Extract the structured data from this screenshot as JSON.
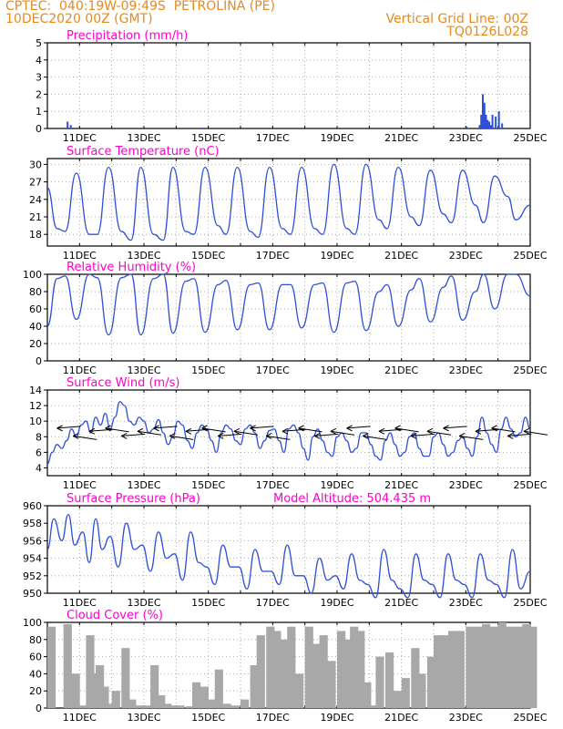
{
  "header": {
    "line1": "CPTEC:  040:19W-09:49S  PETROLINA (PE)",
    "line2": "10DEC2020 00Z (GMT)",
    "grid_note": "Vertical Grid Line: 00Z",
    "code": "TQ0126L028"
  },
  "colors": {
    "header": "#e8891c",
    "title": "#ff00cc",
    "line": "#2e4fd8",
    "bar": "#2e4fd8",
    "cloud": "#a8a8a8",
    "arrow": "#000000"
  },
  "chart_data": [
    {
      "id": "precip",
      "type": "bar",
      "title": "Precipitation (mm/h)",
      "ylim": [
        0,
        5
      ],
      "yticks": [
        0,
        1,
        2,
        3,
        4,
        5
      ],
      "xticks": [
        "11DEC",
        "13DEC",
        "15DEC",
        "17DEC",
        "19DEC",
        "21DEC",
        "23DEC",
        "25DEC"
      ],
      "x": [
        0.6,
        0.7,
        4.8,
        13.0,
        13.4,
        13.45,
        13.5,
        13.55,
        13.6,
        13.65,
        13.7,
        13.75,
        13.8,
        13.9,
        14.0,
        14.1
      ],
      "values": [
        0.4,
        0.2,
        0.05,
        0.1,
        0.2,
        0.8,
        2.0,
        1.5,
        0.8,
        0.5,
        0.4,
        0.2,
        0.8,
        0.7,
        1.0,
        0.3
      ]
    },
    {
      "id": "temp",
      "type": "line",
      "title": "Surface Temperature (nC)",
      "ylim": [
        16,
        31
      ],
      "yticks": [
        18,
        21,
        24,
        27,
        30
      ],
      "xticks": [
        "11DEC",
        "13DEC",
        "15DEC",
        "17DEC",
        "19DEC",
        "21DEC",
        "23DEC",
        "25DEC"
      ],
      "x": [
        0,
        0.3,
        0.55,
        0.9,
        1.3,
        1.55,
        1.9,
        2.3,
        2.6,
        2.9,
        3.3,
        3.6,
        3.9,
        4.3,
        4.55,
        4.9,
        5.3,
        5.55,
        5.9,
        6.3,
        6.55,
        6.9,
        7.3,
        7.55,
        7.9,
        8.3,
        8.55,
        8.9,
        9.3,
        9.55,
        9.9,
        10.3,
        10.55,
        10.9,
        11.3,
        11.55,
        11.9,
        12.3,
        12.55,
        12.9,
        13.3,
        13.55,
        13.9,
        14.3,
        14.55,
        15
      ],
      "values": [
        26,
        19,
        18.5,
        28.5,
        18,
        18,
        29.5,
        18.5,
        17,
        29.5,
        18,
        17,
        29.5,
        18.5,
        18,
        29.5,
        19.5,
        18,
        29.5,
        18.5,
        17.5,
        29.5,
        19,
        18,
        29.5,
        19,
        18,
        30,
        19,
        18,
        30,
        20.5,
        19,
        29.5,
        21,
        19.5,
        29,
        21.5,
        20,
        29,
        23,
        20,
        28,
        24.5,
        20.5,
        23
      ]
    },
    {
      "id": "rh",
      "type": "line",
      "title": "Relative Humidity (%)",
      "ylim": [
        0,
        100
      ],
      "yticks": [
        0,
        20,
        40,
        60,
        80,
        100
      ],
      "xticks": [
        "11DEC",
        "13DEC",
        "15DEC",
        "17DEC",
        "19DEC",
        "21DEC",
        "23DEC",
        "25DEC"
      ],
      "x": [
        0,
        0.3,
        0.55,
        0.9,
        1.3,
        1.55,
        1.9,
        2.3,
        2.6,
        2.9,
        3.3,
        3.6,
        3.9,
        4.3,
        4.55,
        4.9,
        5.3,
        5.55,
        5.9,
        6.3,
        6.55,
        6.9,
        7.3,
        7.55,
        7.9,
        8.3,
        8.55,
        8.9,
        9.3,
        9.55,
        9.9,
        10.3,
        10.55,
        10.9,
        11.3,
        11.55,
        11.9,
        12.3,
        12.55,
        12.9,
        13.3,
        13.55,
        13.9,
        14.3,
        14.55,
        15
      ],
      "values": [
        40,
        95,
        98,
        48,
        100,
        96,
        30,
        96,
        100,
        30,
        95,
        100,
        32,
        92,
        95,
        33,
        88,
        93,
        36,
        88,
        90,
        36,
        88,
        88,
        38,
        88,
        90,
        33,
        90,
        92,
        35,
        80,
        88,
        40,
        82,
        95,
        45,
        85,
        98,
        47,
        80,
        100,
        60,
        100,
        100,
        75
      ]
    },
    {
      "id": "wind",
      "type": "line",
      "title": "Surface Wind (m/s)",
      "ylim": [
        3,
        14
      ],
      "yticks": [
        4,
        6,
        8,
        10,
        12,
        14
      ],
      "xticks": [
        "11DEC",
        "13DEC",
        "15DEC",
        "17DEC",
        "19DEC",
        "21DEC",
        "23DEC",
        "25DEC"
      ],
      "x": [
        0,
        0.15,
        0.3,
        0.45,
        0.6,
        0.75,
        0.9,
        1.05,
        1.2,
        1.35,
        1.5,
        1.65,
        1.8,
        1.95,
        2.1,
        2.25,
        2.4,
        2.55,
        2.7,
        2.85,
        3.0,
        3.15,
        3.3,
        3.45,
        3.6,
        3.75,
        3.9,
        4.05,
        4.2,
        4.35,
        4.5,
        4.65,
        4.8,
        4.95,
        5.1,
        5.25,
        5.4,
        5.55,
        5.7,
        5.85,
        6.0,
        6.15,
        6.3,
        6.45,
        6.6,
        6.75,
        6.9,
        7.05,
        7.2,
        7.35,
        7.5,
        7.65,
        7.8,
        7.95,
        8.1,
        8.25,
        8.4,
        8.55,
        8.7,
        8.85,
        9.0,
        9.15,
        9.3,
        9.45,
        9.6,
        9.75,
        9.9,
        10.05,
        10.2,
        10.35,
        10.5,
        10.65,
        10.8,
        10.95,
        11.1,
        11.25,
        11.4,
        11.55,
        11.7,
        11.85,
        12.0,
        12.15,
        12.3,
        12.45,
        12.6,
        12.75,
        12.9,
        13.05,
        13.2,
        13.35,
        13.5,
        13.65,
        13.8,
        13.95,
        14.1,
        14.25,
        14.4,
        14.55,
        14.7,
        14.85,
        15.0
      ],
      "values": [
        4.5,
        6,
        7,
        6.5,
        7.5,
        9,
        8,
        9.5,
        10,
        8.5,
        10.5,
        9.5,
        11,
        9,
        10.5,
        12.5,
        12,
        10,
        9.5,
        10.5,
        10,
        8.5,
        9,
        10.2,
        8.5,
        7,
        8,
        10,
        9.5,
        7.5,
        6.5,
        8.5,
        9.5,
        9,
        7.5,
        6,
        8.5,
        9.5,
        9,
        7.5,
        7,
        9,
        9.5,
        8.5,
        6.5,
        7.5,
        8.8,
        9,
        7.5,
        6,
        9,
        9.5,
        8.5,
        6.5,
        5,
        8,
        9,
        7.5,
        6,
        5.5,
        8,
        8.5,
        7.5,
        6,
        6.5,
        8.5,
        8.5,
        7,
        5.5,
        5,
        7.5,
        8.5,
        7,
        5.5,
        6,
        8,
        8.5,
        6.5,
        5.5,
        5.5,
        8,
        8.5,
        7,
        5.5,
        6,
        7.5,
        8,
        6.5,
        5.5,
        8,
        10.5,
        8.5,
        7,
        6,
        9,
        10.5,
        9,
        8,
        8.5,
        10.5,
        9
      ]
    },
    {
      "id": "press",
      "type": "line",
      "title": "Surface Pressure (hPa)",
      "annotation": "Model Altitude: 504.435 m",
      "ylim": [
        950,
        960
      ],
      "yticks": [
        950,
        952,
        954,
        956,
        958,
        960
      ],
      "xticks": [
        "11DEC",
        "13DEC",
        "15DEC",
        "17DEC",
        "19DEC",
        "21DEC",
        "23DEC",
        "25DEC"
      ],
      "x": [
        0,
        0.2,
        0.45,
        0.65,
        0.85,
        1.1,
        1.3,
        1.5,
        1.7,
        1.95,
        2.2,
        2.45,
        2.7,
        2.95,
        3.2,
        3.45,
        3.7,
        3.95,
        4.2,
        4.45,
        4.7,
        4.95,
        5.2,
        5.45,
        5.7,
        5.95,
        6.2,
        6.45,
        6.7,
        6.95,
        7.2,
        7.45,
        7.7,
        7.95,
        8.2,
        8.45,
        8.7,
        8.95,
        9.2,
        9.45,
        9.7,
        9.95,
        10.2,
        10.45,
        10.7,
        10.95,
        11.2,
        11.45,
        11.7,
        11.95,
        12.2,
        12.45,
        12.7,
        12.95,
        13.2,
        13.45,
        13.7,
        13.95,
        14.2,
        14.45,
        14.7,
        15
      ],
      "values": [
        955,
        958.5,
        956,
        959,
        955.5,
        957,
        953.5,
        958.5,
        955,
        956.5,
        953,
        958,
        955,
        955.5,
        952.5,
        957,
        954,
        954.5,
        951.5,
        957,
        953.5,
        953,
        951,
        955.5,
        953,
        953,
        950.5,
        955,
        952.5,
        952.5,
        951,
        955.5,
        952,
        952,
        950,
        954,
        951.5,
        952,
        950.5,
        954.5,
        951.5,
        951,
        949.5,
        955,
        951.5,
        950.5,
        949.5,
        954.5,
        951.5,
        951,
        949.5,
        954.5,
        951.5,
        951,
        949.5,
        954.5,
        951.5,
        951,
        949.5,
        955,
        950.5,
        952.5
      ]
    },
    {
      "id": "cloud",
      "type": "bar",
      "title": "Cloud Cover (%)",
      "ylim": [
        0,
        100
      ],
      "yticks": [
        0,
        20,
        40,
        60,
        80,
        100
      ],
      "xticks": [
        "11DEC",
        "13DEC",
        "15DEC",
        "17DEC",
        "19DEC",
        "21DEC",
        "23DEC",
        "25DEC"
      ],
      "x": [
        0,
        0.5,
        0.75,
        1.0,
        1.2,
        1.35,
        1.5,
        1.65,
        1.8,
        2.0,
        2.3,
        2.5,
        2.75,
        3.0,
        3.2,
        3.4,
        3.6,
        3.8,
        4.0,
        4.3,
        4.5,
        4.75,
        5.0,
        5.2,
        5.45,
        5.7,
        6.0,
        6.3,
        6.5,
        6.8,
        7.0,
        7.2,
        7.45,
        7.7,
        8.0,
        8.2,
        8.45,
        8.7,
        9.0,
        9.2,
        9.4,
        9.6,
        9.8,
        10.0,
        10.2,
        10.5,
        10.75,
        11.0,
        11.3,
        11.5,
        11.8,
        12.0,
        12.2,
        12.45,
        12.7,
        13.0,
        13.25,
        13.5,
        13.75,
        14.0,
        14.25,
        14.5,
        14.75,
        14.95
      ],
      "values": [
        95,
        98,
        40,
        3,
        85,
        40,
        50,
        25,
        5,
        20,
        70,
        10,
        3,
        3,
        50,
        15,
        5,
        3,
        3,
        2,
        30,
        25,
        10,
        45,
        5,
        3,
        10,
        50,
        85,
        95,
        90,
        80,
        95,
        40,
        95,
        75,
        85,
        55,
        90,
        80,
        95,
        90,
        30,
        3,
        60,
        65,
        20,
        35,
        70,
        40,
        60,
        85,
        85,
        90,
        90,
        95,
        95,
        98,
        95,
        100,
        95,
        95,
        98,
        95
      ]
    }
  ]
}
